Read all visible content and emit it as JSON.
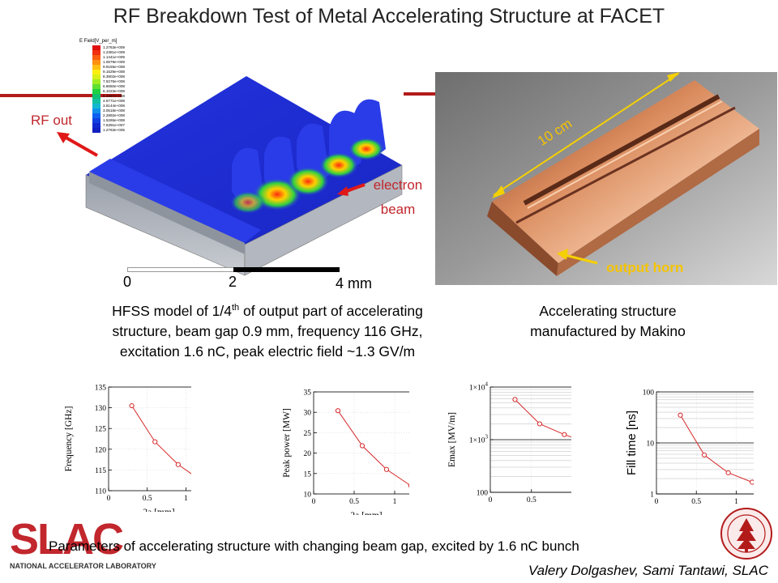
{
  "title": "RF Breakdown Test of Metal Accelerating Structure at FACET",
  "model": {
    "rf_out": "RF out",
    "electron": "electron",
    "beam": "beam",
    "legend_title": "E Field[V_per_m]",
    "legend_values": [
      "1.2763e+009",
      "1.2381e+009",
      "1.1441e+009",
      "1.0679e+009",
      "9.9155e+008",
      "9.1529e+008",
      "8.3902e+008",
      "7.6276e+008",
      "6.8650e+008",
      "6.1023e+008",
      "5.3397e+008",
      "4.5771e+008",
      "3.8144e+008",
      "3.0518e+008",
      "2.2892e+008",
      "1.5265e+008",
      "7.6391e+007",
      "1.2763e+005"
    ],
    "legend_colors": [
      "#e01010",
      "#f03010",
      "#f86010",
      "#ff9010",
      "#ffc010",
      "#ffee10",
      "#d8f018",
      "#a0ec20",
      "#60e030",
      "#20d040",
      "#10c070",
      "#10c0a0",
      "#10b8d0",
      "#1090e8",
      "#1060f0",
      "#1040e0",
      "#1028d0",
      "#1020c0"
    ],
    "scale": {
      "zero": "0",
      "two": "2",
      "four": "4 mm"
    }
  },
  "photo": {
    "length_label": "10 cm",
    "horn_label": "output horn"
  },
  "caption_left": {
    "line1_pre": "HFSS model of 1/4",
    "line1_sup": "th",
    "line1_post": " of output part of accelerating",
    "line2": "structure, beam gap 0.9 mm, frequency 116 GHz,",
    "line3": "excitation 1.6 nC, peak electric field ~1.3 GV/m"
  },
  "caption_right": {
    "line1": "Accelerating structure",
    "line2": "manufactured by Makino"
  },
  "bottom_caption": "Parameters of accelerating structure with changing beam gap,  excited by 1.6 nC bunch",
  "authors": "Valery Dolgashev, Sami Tantawi, SLAC",
  "logo": {
    "text": "SLAC",
    "subtext": "NATIONAL ACCELERATOR LABORATORY"
  },
  "colors": {
    "accent_red": "#c1272d",
    "photo_label_yellow": "#f5c400",
    "plot_line": "#d62728"
  },
  "chart_data": [
    {
      "type": "line",
      "xlabel": "2a [mm]",
      "ylabel": "Frequency [GHz]",
      "xlim": [
        0,
        1.3
      ],
      "ylim": [
        110,
        135
      ],
      "xticks": [
        0,
        0.5,
        1
      ],
      "xtick_labels": [
        "0",
        "0.5",
        "1"
      ],
      "yticks": [
        110,
        115,
        120,
        125,
        130,
        135
      ],
      "ytick_labels": [
        "110",
        "115",
        "120",
        "125",
        "130",
        "135"
      ],
      "log": false,
      "series": [
        {
          "x": [
            0.3,
            0.6,
            0.9,
            1.2
          ],
          "y": [
            130.5,
            121.8,
            116.3,
            112.4
          ]
        }
      ]
    },
    {
      "type": "line",
      "xlabel": "2a [mm]",
      "ylabel": "Peak power [MW]",
      "xlim": [
        0,
        1.3
      ],
      "ylim": [
        10,
        35
      ],
      "xticks": [
        0,
        0.5,
        1
      ],
      "xtick_labels": [
        "0",
        "0.5",
        "1"
      ],
      "yticks": [
        10,
        15,
        20,
        25,
        30,
        35
      ],
      "ytick_labels": [
        "10",
        "15",
        "20",
        "25",
        "30",
        "35"
      ],
      "log": false,
      "series": [
        {
          "x": [
            0.3,
            0.6,
            0.9,
            1.2
          ],
          "y": [
            30.4,
            21.8,
            16.0,
            12.0
          ]
        }
      ]
    },
    {
      "type": "line",
      "xlabel": "2a [mm]",
      "ylabel": "Emax [MV/m]",
      "xlim": [
        0,
        1.3
      ],
      "ylim": [
        100,
        10000
      ],
      "xticks": [
        0,
        0.5,
        1
      ],
      "xtick_labels": [
        "0",
        "0.5",
        "1"
      ],
      "yticks": [
        100,
        1000,
        10000
      ],
      "ytick_labels": [
        "100",
        "1×10",
        "1×10"
      ],
      "ytick_sup": [
        "",
        "3",
        "4"
      ],
      "log": true,
      "series": [
        {
          "x": [
            0.3,
            0.6,
            0.9,
            1.2
          ],
          "y": [
            5800,
            2000,
            1250,
            850
          ]
        }
      ]
    },
    {
      "type": "line",
      "xlabel": "2a [mm]",
      "ylabel": "Fill time [ns]",
      "xlim": [
        0,
        1.3
      ],
      "ylim": [
        1,
        100
      ],
      "xticks": [
        0,
        0.5,
        1
      ],
      "xtick_labels": [
        "0",
        "0.5",
        "1"
      ],
      "yticks": [
        1,
        10,
        100
      ],
      "ytick_labels": [
        "1",
        "10",
        "100"
      ],
      "log": true,
      "series": [
        {
          "x": [
            0.3,
            0.6,
            0.9,
            1.2
          ],
          "y": [
            35,
            5.8,
            2.6,
            1.7
          ]
        }
      ]
    }
  ]
}
